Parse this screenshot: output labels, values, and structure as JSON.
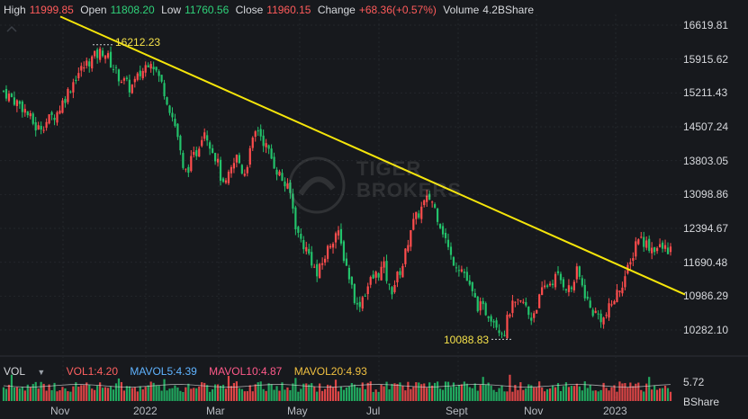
{
  "quote": {
    "high_label": "High",
    "high": "11999.85",
    "open_label": "Open",
    "open": "11808.20",
    "low_label": "Low",
    "low": "11760.56",
    "close_label": "Close",
    "close": "11960.15",
    "change_label": "Change",
    "change": "+68.36(+0.57%)",
    "volume_label": "Volume",
    "volume": "4.2BShare"
  },
  "volume_bar": {
    "label": "VOL",
    "vol1": "VOL1:4.20",
    "mavol5": "MAVOL5:4.39",
    "mavol10": "MAVOL10:4.87",
    "mavol20": "MAVOL20:4.93",
    "axis_top": "5.72",
    "axis_unit": "BShare"
  },
  "annotations": {
    "high_marker": "16212.23",
    "low_marker": "10088.83"
  },
  "watermark": {
    "line1": "TIGER",
    "line2": "BROKERS"
  },
  "colors": {
    "up": "#ff4d4d",
    "down": "#23c26b",
    "trendline": "#f5e50a",
    "background": "#17191d"
  },
  "chart_data": {
    "type": "candlestick",
    "y_ticks": [
      "16619.81",
      "15915.62",
      "15211.43",
      "14507.24",
      "13803.05",
      "13098.86",
      "12394.67",
      "11690.48",
      "10986.29",
      "10282.10"
    ],
    "ylim": [
      10000,
      16800
    ],
    "x_ticks": [
      "Nov",
      "2022",
      "Mar",
      "May",
      "Jul",
      "Sept",
      "Nov",
      "2023"
    ],
    "period_high": 16212.23,
    "period_low": 10088.83,
    "trendline_points": [
      [
        0,
        16800
      ],
      [
        1,
        11020
      ]
    ],
    "close_path": [
      {
        "t": 0.0,
        "v": 15250
      },
      {
        "t": 0.03,
        "v": 14900
      },
      {
        "t": 0.05,
        "v": 14450
      },
      {
        "t": 0.08,
        "v": 14800
      },
      {
        "t": 0.11,
        "v": 15600
      },
      {
        "t": 0.13,
        "v": 15900
      },
      {
        "t": 0.15,
        "v": 16100
      },
      {
        "t": 0.17,
        "v": 15600
      },
      {
        "t": 0.19,
        "v": 15300
      },
      {
        "t": 0.21,
        "v": 15700
      },
      {
        "t": 0.22,
        "v": 15950
      },
      {
        "t": 0.24,
        "v": 15300
      },
      {
        "t": 0.26,
        "v": 14400
      },
      {
        "t": 0.27,
        "v": 13500
      },
      {
        "t": 0.29,
        "v": 14000
      },
      {
        "t": 0.3,
        "v": 14500
      },
      {
        "t": 0.32,
        "v": 13800
      },
      {
        "t": 0.33,
        "v": 13200
      },
      {
        "t": 0.35,
        "v": 13900
      },
      {
        "t": 0.36,
        "v": 13500
      },
      {
        "t": 0.38,
        "v": 14500
      },
      {
        "t": 0.39,
        "v": 14200
      },
      {
        "t": 0.41,
        "v": 13600
      },
      {
        "t": 0.43,
        "v": 13100
      },
      {
        "t": 0.44,
        "v": 12300
      },
      {
        "t": 0.46,
        "v": 11800
      },
      {
        "t": 0.47,
        "v": 11400
      },
      {
        "t": 0.49,
        "v": 12100
      },
      {
        "t": 0.5,
        "v": 12350
      },
      {
        "t": 0.52,
        "v": 11300
      },
      {
        "t": 0.53,
        "v": 10750
      },
      {
        "t": 0.55,
        "v": 11300
      },
      {
        "t": 0.57,
        "v": 11600
      },
      {
        "t": 0.58,
        "v": 11050
      },
      {
        "t": 0.6,
        "v": 11700
      },
      {
        "t": 0.61,
        "v": 12400
      },
      {
        "t": 0.63,
        "v": 12900
      },
      {
        "t": 0.64,
        "v": 13050
      },
      {
        "t": 0.66,
        "v": 12300
      },
      {
        "t": 0.67,
        "v": 11800
      },
      {
        "t": 0.69,
        "v": 11500
      },
      {
        "t": 0.7,
        "v": 11100
      },
      {
        "t": 0.71,
        "v": 10800
      },
      {
        "t": 0.73,
        "v": 10600
      },
      {
        "t": 0.75,
        "v": 10200
      },
      {
        "t": 0.76,
        "v": 10750
      },
      {
        "t": 0.78,
        "v": 10850
      },
      {
        "t": 0.79,
        "v": 10500
      },
      {
        "t": 0.81,
        "v": 11150
      },
      {
        "t": 0.83,
        "v": 11400
      },
      {
        "t": 0.85,
        "v": 11100
      },
      {
        "t": 0.86,
        "v": 11500
      },
      {
        "t": 0.88,
        "v": 10700
      },
      {
        "t": 0.9,
        "v": 10500
      },
      {
        "t": 0.92,
        "v": 11050
      },
      {
        "t": 0.94,
        "v": 11650
      },
      {
        "t": 0.95,
        "v": 12250
      },
      {
        "t": 0.97,
        "v": 12000
      },
      {
        "t": 1.0,
        "v": 11960
      }
    ]
  }
}
